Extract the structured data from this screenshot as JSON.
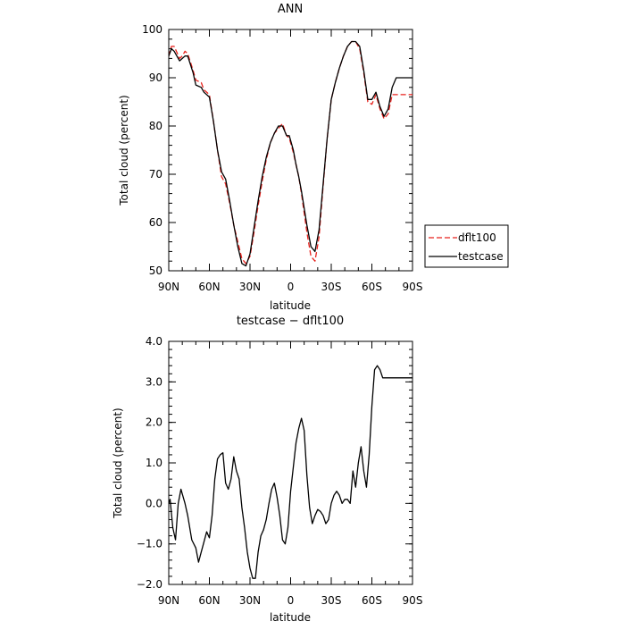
{
  "chart_data": [
    {
      "type": "line",
      "title": "ANN",
      "xlabel": "latitude",
      "ylabel": "Total cloud (percent)",
      "xlim": [
        -90,
        90
      ],
      "ylim": [
        50,
        100
      ],
      "x_ticks": [
        -90,
        -60,
        -30,
        0,
        30,
        60,
        90
      ],
      "x_tick_labels": [
        "90N",
        "60N",
        "30N",
        "0",
        "30S",
        "60S",
        "90S"
      ],
      "y_ticks": [
        50,
        60,
        70,
        80,
        90,
        100
      ],
      "y_tick_labels": [
        "50",
        "60",
        "70",
        "80",
        "90",
        "100"
      ],
      "grid": false,
      "legend": "right",
      "colors": {
        "dflt100": "#e8211c",
        "testcase": "#000000"
      },
      "series": [
        {
          "name": "dflt100",
          "style": "dashed",
          "color": "#e8211c",
          "x": [
            -90,
            -88,
            -86,
            -82,
            -80,
            -78,
            -76,
            -72,
            -70,
            -66,
            -64,
            -60,
            -57,
            -54,
            -51,
            -48,
            -45,
            -42,
            -39,
            -36,
            -33,
            -30,
            -27,
            -24,
            -21,
            -18,
            -15,
            -12,
            -9,
            -6,
            -3,
            -1,
            0,
            2,
            4,
            6,
            8,
            10,
            12,
            15,
            18,
            21,
            24,
            27,
            30,
            33,
            36,
            39,
            42,
            45,
            48,
            51,
            54,
            57,
            60,
            63,
            66,
            69,
            72,
            75,
            78,
            81,
            84,
            87,
            90
          ],
          "y": [
            94.5,
            96.5,
            96.5,
            94.0,
            94.5,
            95.5,
            95.0,
            91.5,
            89.5,
            89.0,
            87.5,
            86.5,
            81.0,
            75.0,
            69.5,
            68.0,
            64.0,
            59.5,
            56.0,
            52.5,
            51.5,
            53.0,
            58.0,
            63.5,
            68.5,
            73.0,
            76.5,
            78.5,
            79.5,
            80.5,
            78.0,
            77.5,
            76.5,
            74.5,
            72.0,
            69.5,
            66.0,
            62.0,
            58.0,
            53.0,
            52.0,
            57.0,
            67.5,
            77.5,
            85.5,
            89.0,
            92.0,
            94.5,
            96.5,
            97.5,
            97.5,
            96.0,
            91.0,
            85.0,
            84.5,
            86.5,
            83.5,
            81.5,
            82.5,
            86.5,
            86.5,
            86.5,
            86.5,
            86.5,
            86.5
          ]
        },
        {
          "name": "testcase",
          "style": "solid",
          "color": "#000000",
          "x": [
            -90,
            -88,
            -86,
            -82,
            -80,
            -78,
            -76,
            -72,
            -70,
            -66,
            -64,
            -60,
            -57,
            -54,
            -51,
            -48,
            -45,
            -42,
            -39,
            -36,
            -33,
            -30,
            -27,
            -24,
            -21,
            -18,
            -15,
            -12,
            -9,
            -6,
            -3,
            -1,
            0,
            2,
            4,
            6,
            8,
            10,
            12,
            15,
            18,
            21,
            24,
            27,
            30,
            33,
            36,
            39,
            42,
            45,
            48,
            51,
            54,
            57,
            60,
            63,
            66,
            69,
            72,
            75,
            78,
            81,
            84,
            87,
            90
          ],
          "y": [
            94.5,
            96.0,
            95.5,
            93.5,
            94.0,
            94.5,
            94.5,
            91.0,
            88.5,
            88.0,
            87.0,
            86.0,
            81.0,
            75.0,
            70.5,
            69.0,
            64.5,
            59.5,
            55.0,
            51.5,
            51.0,
            53.5,
            59.0,
            64.5,
            69.5,
            73.5,
            76.5,
            78.5,
            80.0,
            80.0,
            78.0,
            78.0,
            77.0,
            75.0,
            72.0,
            69.5,
            66.5,
            63.0,
            59.5,
            55.0,
            54.0,
            58.5,
            68.0,
            77.5,
            85.5,
            89.0,
            92.0,
            94.5,
            96.5,
            97.5,
            97.5,
            96.5,
            91.5,
            85.5,
            85.5,
            87.0,
            84.0,
            82.0,
            83.5,
            88.0,
            90.0,
            90.0,
            90.0,
            90.0,
            90.0
          ]
        }
      ]
    },
    {
      "type": "line",
      "title": "testcase − dflt100",
      "xlabel": "latitude",
      "ylabel": "Total cloud (percent)",
      "xlim": [
        -90,
        90
      ],
      "ylim": [
        -2.0,
        4.0
      ],
      "x_ticks": [
        -90,
        -60,
        -30,
        0,
        30,
        60,
        90
      ],
      "x_tick_labels": [
        "90N",
        "60N",
        "30N",
        "0",
        "30S",
        "60S",
        "90S"
      ],
      "y_ticks": [
        -2.0,
        -1.0,
        0.0,
        1.0,
        2.0,
        3.0,
        4.0
      ],
      "y_tick_labels": [
        "−2.0",
        "−1.0",
        "0.0",
        "1.0",
        "2.0",
        "3.0",
        "4.0"
      ],
      "grid": false,
      "series": [
        {
          "color": "#000000",
          "x": [
            -90,
            -89,
            -87,
            -85,
            -83,
            -81,
            -78,
            -76,
            -73,
            -70,
            -68,
            -66,
            -64,
            -62,
            -60,
            -58,
            -56,
            -54,
            -52,
            -50,
            -48,
            -46,
            -44,
            -42,
            -40,
            -38,
            -36,
            -34,
            -32,
            -30,
            -28,
            -26,
            -24,
            -22,
            -20,
            -18,
            -16,
            -14,
            -12,
            -10,
            -8,
            -6,
            -4,
            -2,
            0,
            2,
            4,
            6,
            8,
            10,
            12,
            14,
            16,
            18,
            20,
            22,
            24,
            26,
            28,
            30,
            32,
            34,
            36,
            38,
            40,
            42,
            44,
            46,
            48,
            50,
            52,
            54,
            56,
            58,
            60,
            62,
            64,
            66,
            68,
            70,
            72,
            74,
            76,
            78,
            80,
            82,
            84,
            86,
            88,
            90
          ],
          "y": [
            0.0,
            0.1,
            -0.6,
            -0.9,
            0.0,
            0.35,
            0.0,
            -0.3,
            -0.9,
            -1.1,
            -1.45,
            -1.2,
            -0.95,
            -0.7,
            -0.85,
            -0.3,
            0.6,
            1.1,
            1.2,
            1.25,
            0.5,
            0.35,
            0.6,
            1.15,
            0.8,
            0.6,
            -0.1,
            -0.6,
            -1.2,
            -1.6,
            -1.85,
            -1.85,
            -1.2,
            -0.8,
            -0.65,
            -0.4,
            0.0,
            0.35,
            0.5,
            0.15,
            -0.3,
            -0.9,
            -1.0,
            -0.6,
            0.3,
            0.9,
            1.5,
            1.85,
            2.1,
            1.8,
            0.7,
            -0.1,
            -0.5,
            -0.3,
            -0.15,
            -0.2,
            -0.3,
            -0.5,
            -0.4,
            0.0,
            0.2,
            0.3,
            0.2,
            0.0,
            0.1,
            0.1,
            0.0,
            0.8,
            0.4,
            1.0,
            1.4,
            0.8,
            0.4,
            1.2,
            2.4,
            3.3,
            3.4,
            3.3,
            3.1,
            3.1,
            3.1,
            3.1,
            3.1,
            3.1,
            3.1,
            3.1,
            3.1,
            3.1,
            3.1,
            3.1
          ]
        }
      ]
    }
  ]
}
